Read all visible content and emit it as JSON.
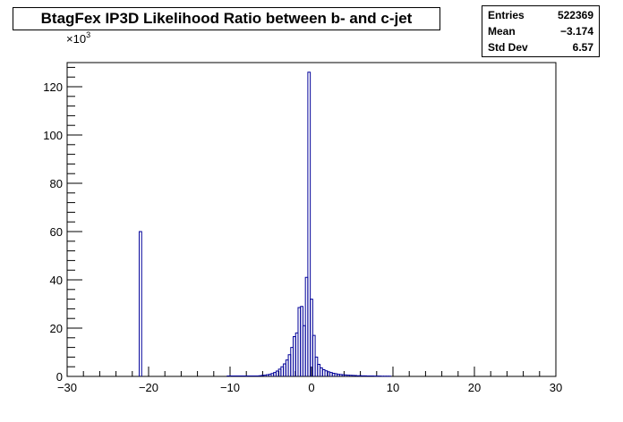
{
  "chart_data": {
    "type": "bar",
    "title": "BtagFex IP3D Likelihood Ratio between b- and c-jet",
    "xlabel": "",
    "ylabel": "",
    "y_multiplier_label": "×10",
    "y_multiplier_exponent": "3",
    "xlim": [
      -30,
      30
    ],
    "ylim": [
      0,
      130
    ],
    "xticks": [
      -30,
      -20,
      -10,
      0,
      10,
      20,
      30
    ],
    "yticks": [
      0,
      20,
      40,
      60,
      80,
      100,
      120
    ],
    "bin_width": 0.3,
    "bins": [
      {
        "x": -21.0,
        "y": 60.0
      },
      {
        "x": -10.2,
        "y": 0.2
      },
      {
        "x": -9.9,
        "y": 0.2
      },
      {
        "x": -9.6,
        "y": 0.2
      },
      {
        "x": -9.3,
        "y": 0.2
      },
      {
        "x": -9.0,
        "y": 0.2
      },
      {
        "x": -8.7,
        "y": 0.2
      },
      {
        "x": -8.4,
        "y": 0.2
      },
      {
        "x": -8.1,
        "y": 0.2
      },
      {
        "x": -7.8,
        "y": 0.2
      },
      {
        "x": -7.5,
        "y": 0.2
      },
      {
        "x": -7.2,
        "y": 0.2
      },
      {
        "x": -6.9,
        "y": 0.2
      },
      {
        "x": -6.6,
        "y": 0.2
      },
      {
        "x": -6.3,
        "y": 0.3
      },
      {
        "x": -6.0,
        "y": 0.4
      },
      {
        "x": -5.7,
        "y": 0.5
      },
      {
        "x": -5.4,
        "y": 0.7
      },
      {
        "x": -5.1,
        "y": 0.9
      },
      {
        "x": -4.8,
        "y": 1.2
      },
      {
        "x": -4.5,
        "y": 1.6
      },
      {
        "x": -4.2,
        "y": 2.2
      },
      {
        "x": -3.9,
        "y": 3.0
      },
      {
        "x": -3.6,
        "y": 4.0
      },
      {
        "x": -3.3,
        "y": 5.2
      },
      {
        "x": -3.0,
        "y": 6.8
      },
      {
        "x": -2.7,
        "y": 9.0
      },
      {
        "x": -2.4,
        "y": 12.0
      },
      {
        "x": -2.1,
        "y": 16.5
      },
      {
        "x": -1.8,
        "y": 18.0
      },
      {
        "x": -1.5,
        "y": 28.5
      },
      {
        "x": -1.2,
        "y": 29.0
      },
      {
        "x": -0.9,
        "y": 21.0
      },
      {
        "x": -0.6,
        "y": 41.0
      },
      {
        "x": -0.3,
        "y": 126.0
      },
      {
        "x": 0.0,
        "y": 32.0
      },
      {
        "x": 0.3,
        "y": 17.0
      },
      {
        "x": 0.6,
        "y": 8.0
      },
      {
        "x": 0.9,
        "y": 5.0
      },
      {
        "x": 1.2,
        "y": 3.5
      },
      {
        "x": 1.5,
        "y": 2.8
      },
      {
        "x": 1.8,
        "y": 2.3
      },
      {
        "x": 2.1,
        "y": 1.9
      },
      {
        "x": 2.4,
        "y": 1.6
      },
      {
        "x": 2.7,
        "y": 1.3
      },
      {
        "x": 3.0,
        "y": 1.1
      },
      {
        "x": 3.3,
        "y": 0.9
      },
      {
        "x": 3.6,
        "y": 0.8
      },
      {
        "x": 3.9,
        "y": 0.7
      },
      {
        "x": 4.2,
        "y": 0.6
      },
      {
        "x": 4.5,
        "y": 0.5
      },
      {
        "x": 4.8,
        "y": 0.45
      },
      {
        "x": 5.1,
        "y": 0.4
      },
      {
        "x": 5.4,
        "y": 0.35
      },
      {
        "x": 5.7,
        "y": 0.3
      },
      {
        "x": 6.0,
        "y": 0.3
      },
      {
        "x": 6.3,
        "y": 0.25
      },
      {
        "x": 6.6,
        "y": 0.25
      },
      {
        "x": 6.9,
        "y": 0.2
      },
      {
        "x": 7.2,
        "y": 0.2
      },
      {
        "x": 7.5,
        "y": 0.2
      },
      {
        "x": 7.8,
        "y": 0.15
      },
      {
        "x": 8.1,
        "y": 0.15
      },
      {
        "x": 8.4,
        "y": 0.15
      },
      {
        "x": 8.7,
        "y": 0.1
      },
      {
        "x": 9.0,
        "y": 0.1
      },
      {
        "x": 9.3,
        "y": 0.1
      },
      {
        "x": 9.6,
        "y": 0.1
      }
    ],
    "colors": {
      "line": "#000099",
      "axis": "#000000"
    }
  },
  "stats": {
    "entries_label": "Entries",
    "entries_value": "522369",
    "mean_label": "Mean",
    "mean_value": "−3.174",
    "stddev_label": "Std Dev",
    "stddev_value": "6.57"
  }
}
